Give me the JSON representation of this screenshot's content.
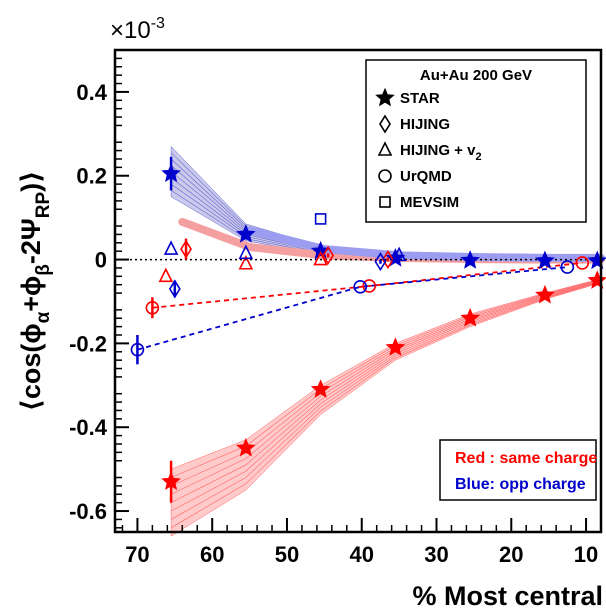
{
  "chart_data": {
    "type": "scatter",
    "multiplier_label": "×10",
    "multiplier_exponent": "-3",
    "xlabel": "% Most central",
    "ylabel": {
      "open": "⟨cos(ϕ",
      "sub1": "α",
      "mid": "+ϕ",
      "sub2": "β",
      "tail": "-2Ψ",
      "sub3": "RP",
      "close": ")⟩"
    },
    "xlim": [
      73,
      8
    ],
    "ylim": [
      -0.65,
      0.5
    ],
    "x_ticks": [
      70,
      60,
      50,
      40,
      30,
      20,
      10
    ],
    "y_ticks": [
      -0.6,
      -0.4,
      -0.2,
      0,
      0.2,
      0.4
    ],
    "y_tick_labels": [
      "-0.6",
      "-0.4",
      "-0.2",
      "0",
      "0.2",
      "0.4"
    ],
    "reference_line": 0,
    "legend": {
      "title": "Au+Au 200 GeV",
      "entries": [
        {
          "marker": "star",
          "label": "STAR"
        },
        {
          "marker": "diamond",
          "label": "HIJING"
        },
        {
          "marker": "triangle",
          "label": "HIJING + v",
          "sub": "2"
        },
        {
          "marker": "circle",
          "label": "UrQMD"
        },
        {
          "marker": "square",
          "label": "MEVSIM"
        }
      ]
    },
    "note": {
      "red_label": "Red : same charge",
      "blue_label": "Blue:  opp charge"
    },
    "colors": {
      "same": "#ff0000",
      "opp": "#0000cc",
      "same_band": "#ff6666",
      "opp_band": "#6666cc",
      "same_thick": "#f4a0a0",
      "opp_thick": "#9c9cf0"
    },
    "series": [
      {
        "name": "STAR same",
        "marker": "star",
        "color": "same",
        "points": [
          {
            "x": 65.5,
            "y": -0.53,
            "err": 0.05
          },
          {
            "x": 55.5,
            "y": -0.45,
            "err": 0.012
          },
          {
            "x": 45.5,
            "y": -0.31,
            "err": 0.008
          },
          {
            "x": 35.5,
            "y": -0.21,
            "err": 0.006
          },
          {
            "x": 25.5,
            "y": -0.14,
            "err": 0.005
          },
          {
            "x": 15.5,
            "y": -0.085,
            "err": 0.004
          },
          {
            "x": 8.5,
            "y": -0.05,
            "err": 0.004
          }
        ]
      },
      {
        "name": "STAR opp",
        "marker": "star",
        "color": "opp",
        "points": [
          {
            "x": 65.5,
            "y": 0.205,
            "err": 0.04
          },
          {
            "x": 55.5,
            "y": 0.06,
            "err": 0.012
          },
          {
            "x": 45.5,
            "y": 0.02,
            "err": 0.008
          },
          {
            "x": 35.5,
            "y": 0.003,
            "err": 0.006
          },
          {
            "x": 25.5,
            "y": -0.002,
            "err": 0.005
          },
          {
            "x": 15.5,
            "y": -0.003,
            "err": 0.004
          },
          {
            "x": 8.5,
            "y": -0.003,
            "err": 0.004
          }
        ]
      },
      {
        "name": "HIJING same",
        "marker": "diamond",
        "color": "same",
        "points": [
          {
            "x": 63.5,
            "y": 0.025,
            "err": 0.025
          },
          {
            "x": 44.5,
            "y": 0.01,
            "err": 0.005
          },
          {
            "x": 36.5,
            "y": 0.0,
            "err": 0.005
          }
        ]
      },
      {
        "name": "HIJING opp",
        "marker": "diamond",
        "color": "opp",
        "points": [
          {
            "x": 65,
            "y": -0.07,
            "err": 0.02
          },
          {
            "x": 37.5,
            "y": -0.005,
            "err": 0.005
          }
        ]
      },
      {
        "name": "HIJING + v2 same",
        "marker": "triangle",
        "color": "same",
        "points": [
          {
            "x": 66.2,
            "y": -0.04,
            "err": 0.0
          },
          {
            "x": 55.5,
            "y": -0.01,
            "err": 0.0
          },
          {
            "x": 45.5,
            "y": 0.0,
            "err": 0.0
          }
        ]
      },
      {
        "name": "HIJING + v2 opp",
        "marker": "triangle",
        "color": "opp",
        "points": [
          {
            "x": 65.5,
            "y": 0.025,
            "err": 0.0
          },
          {
            "x": 55.5,
            "y": 0.015,
            "err": 0.0
          },
          {
            "x": 35,
            "y": 0.01,
            "err": 0.0
          }
        ]
      },
      {
        "name": "UrQMD same",
        "marker": "circle",
        "color": "same",
        "points": [
          {
            "x": 68,
            "y": -0.115,
            "err": 0.025
          },
          {
            "x": 39,
            "y": -0.063,
            "err": 0.0
          },
          {
            "x": 10.5,
            "y": -0.008,
            "err": 0.0
          }
        ]
      },
      {
        "name": "UrQMD opp",
        "marker": "circle",
        "color": "opp",
        "points": [
          {
            "x": 70,
            "y": -0.215,
            "err": 0.035
          },
          {
            "x": 40.2,
            "y": -0.065,
            "err": 0.0
          },
          {
            "x": 12.5,
            "y": -0.018,
            "err": 0.0
          }
        ]
      },
      {
        "name": "MEVSIM opp",
        "marker": "square",
        "color": "opp",
        "points": [
          {
            "x": 45.5,
            "y": 0.097,
            "err": 0.0
          }
        ]
      }
    ],
    "dashed_lines": [
      {
        "color": "same",
        "points": [
          [
            68,
            -0.115
          ],
          [
            39,
            -0.063
          ],
          [
            10.5,
            -0.008
          ]
        ]
      },
      {
        "color": "opp",
        "points": [
          [
            70,
            -0.215
          ],
          [
            40.2,
            -0.065
          ],
          [
            12.5,
            -0.018
          ]
        ]
      }
    ],
    "bands": [
      {
        "color": "same_band",
        "x": [
          65.5,
          55.5,
          45.5,
          35.5,
          25.5,
          15.5,
          8.5
        ],
        "low": [
          -0.66,
          -0.55,
          -0.37,
          -0.24,
          -0.16,
          -0.095,
          -0.058
        ],
        "high": [
          -0.5,
          -0.43,
          -0.3,
          -0.2,
          -0.13,
          -0.08,
          -0.048
        ]
      },
      {
        "color": "opp_band",
        "x": [
          65.5,
          55.5,
          45.5,
          35.5,
          25.5,
          15.5,
          8.5
        ],
        "low": [
          0.15,
          0.045,
          0.012,
          0.0,
          -0.004,
          -0.005,
          -0.005
        ],
        "high": [
          0.27,
          0.085,
          0.032,
          0.01,
          0.004,
          0.003,
          0.003
        ]
      }
    ],
    "thick_lines": [
      {
        "color": "same_thick",
        "points": [
          [
            64,
            0.09
          ],
          [
            55,
            0.03
          ],
          [
            45,
            0.01
          ],
          [
            35,
            0.004
          ],
          [
            25,
            0.001
          ],
          [
            15,
            0.0
          ],
          [
            8,
            0.0
          ]
        ]
      },
      {
        "color": "opp_thick",
        "points": [
          [
            55,
            0.07
          ],
          [
            45,
            0.025
          ],
          [
            35,
            0.01
          ],
          [
            25,
            0.006
          ],
          [
            15,
            0.004
          ],
          [
            8,
            0.004
          ]
        ]
      }
    ]
  }
}
